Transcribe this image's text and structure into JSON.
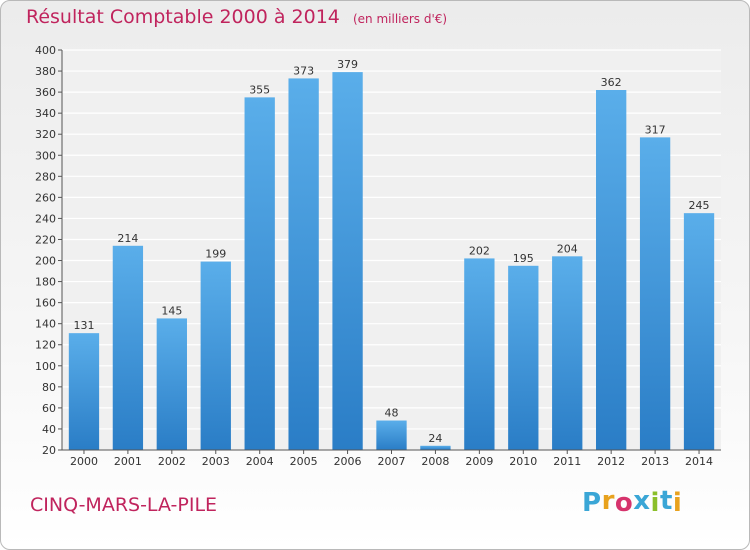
{
  "header": {
    "title": "Résultat Comptable 2000 à 2014",
    "subtitle": "(en milliers d'€)"
  },
  "footer": {
    "commune": "CINQ-MARS-LA-PILE",
    "logo_letters": [
      "P",
      "r",
      "o",
      "x",
      "i",
      "t",
      "i"
    ],
    "logo_colors": [
      "#3aa6d6",
      "#e8a21e",
      "#d6336c",
      "#3aa6d6",
      "#8bbf2a",
      "#3aa6d6",
      "#e8a21e"
    ]
  },
  "colors": {
    "title": "#c0245d",
    "bar_light": "#5aaeea",
    "bar_dark": "#2a7dc6",
    "plot_bg": "#f0f0f0",
    "grid": "#ffffff"
  },
  "chart_data": {
    "type": "bar",
    "title": "Résultat Comptable 2000 à 2014",
    "xlabel": "",
    "ylabel": "",
    "categories": [
      "2000",
      "2001",
      "2002",
      "2003",
      "2004",
      "2005",
      "2006",
      "2007",
      "2008",
      "2009",
      "2010",
      "2011",
      "2012",
      "2013",
      "2014"
    ],
    "values": [
      131,
      214,
      145,
      199,
      355,
      373,
      379,
      48,
      24,
      202,
      195,
      204,
      362,
      317,
      245
    ],
    "ylim": [
      20,
      400
    ],
    "yticks": [
      20,
      40,
      60,
      80,
      100,
      120,
      140,
      160,
      180,
      200,
      220,
      240,
      260,
      280,
      300,
      320,
      340,
      360,
      380,
      400
    ],
    "grid": true
  }
}
